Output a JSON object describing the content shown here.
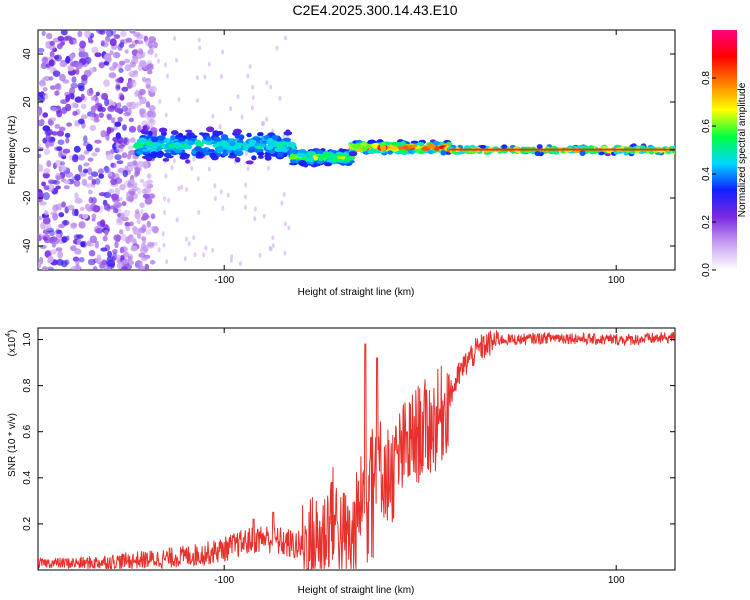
{
  "title": "C2E4.2025.300.14.43.E10",
  "chart_data": [
    {
      "type": "heatmap",
      "title": "C2E4.2025.300.14.43.E10",
      "xlabel": "Height of straight line (km)",
      "ylabel": "Frequency (Hz)",
      "xlim": [
        -195,
        130
      ],
      "ylim": [
        -50,
        50
      ],
      "xticks": [
        -100,
        100
      ],
      "yticks": [
        -40,
        -20,
        0,
        20,
        40
      ],
      "ytick_labels": [
        "-40",
        "-20",
        "0",
        "20",
        "40"
      ],
      "xtick_labels": [
        "-100",
        "100"
      ],
      "colorbar": {
        "label": "Normalized spectral amplitude",
        "range": [
          0,
          1
        ],
        "ticks": [
          0.0,
          0.2,
          0.4,
          0.6,
          0.8
        ],
        "tick_labels": [
          "0.0",
          "0.2",
          "0.4",
          "0.6",
          "0.8"
        ],
        "colors": [
          "#ffffff",
          "#c8a0f0",
          "#7a28e0",
          "#1020ff",
          "#00d8ff",
          "#00ff40",
          "#ffff00",
          "#ff8000",
          "#ff0000",
          "#ff0080"
        ]
      },
      "regions": [
        {
          "x_range": [
            -195,
            -145
          ],
          "description_amplitude": 0.3,
          "spread_hz": 50
        },
        {
          "x_range": [
            -145,
            -65
          ],
          "center_hz": 2,
          "spread_hz": 8,
          "peak_amplitude": 0.55
        },
        {
          "x_range": [
            -65,
            -35
          ],
          "center_hz": -3,
          "spread_hz": 4,
          "peak_amplitude": 0.7
        },
        {
          "x_range": [
            -35,
            15
          ],
          "center_hz": 1,
          "spread_hz": 3,
          "peak_amplitude": 0.95
        },
        {
          "x_range": [
            15,
            130
          ],
          "center_hz": 0,
          "spread_hz": 2,
          "peak_amplitude": 0.85
        }
      ]
    },
    {
      "type": "line",
      "xlabel": "Height of straight line (km)",
      "ylabel": "SNR (10 * v/v)",
      "y_multiplier": "(x10",
      "y_multiplier_exp": "4",
      "y_multiplier_close": ")",
      "xlim": [
        -195,
        130
      ],
      "ylim": [
        0,
        1.05
      ],
      "xticks": [
        -100,
        100
      ],
      "xtick_labels": [
        "-100",
        "100"
      ],
      "yticks": [
        0.2,
        0.4,
        0.6,
        0.8,
        1.0
      ],
      "ytick_labels": [
        "0.2",
        "0.4",
        "0.6",
        "0.8",
        "1.0"
      ],
      "color": "#e8302c",
      "series": [
        {
          "name": "SNR",
          "x": [
            -195,
            -170,
            -150,
            -130,
            -110,
            -100,
            -90,
            -80,
            -70,
            -60,
            -50,
            -45,
            -40,
            -35,
            -30,
            -25,
            -20,
            -15,
            -10,
            -5,
            0,
            5,
            10,
            15,
            20,
            25,
            30,
            35,
            40,
            50,
            70,
            90,
            110,
            130
          ],
          "y": [
            0.03,
            0.03,
            0.04,
            0.05,
            0.07,
            0.09,
            0.12,
            0.14,
            0.12,
            0.1,
            0.13,
            0.25,
            0.15,
            0.12,
            0.3,
            0.55,
            0.45,
            0.4,
            0.5,
            0.55,
            0.6,
            0.62,
            0.66,
            0.75,
            0.85,
            0.92,
            0.96,
            0.98,
            1.0,
            1.0,
            1.01,
            1.0,
            1.0,
            1.01
          ]
        }
      ],
      "spikes": [
        {
          "x": -28,
          "y": 0.98
        },
        {
          "x": -22,
          "y": 0.92
        },
        {
          "x": -75,
          "y": 0.25
        },
        {
          "x": -85,
          "y": 0.22
        }
      ]
    }
  ]
}
